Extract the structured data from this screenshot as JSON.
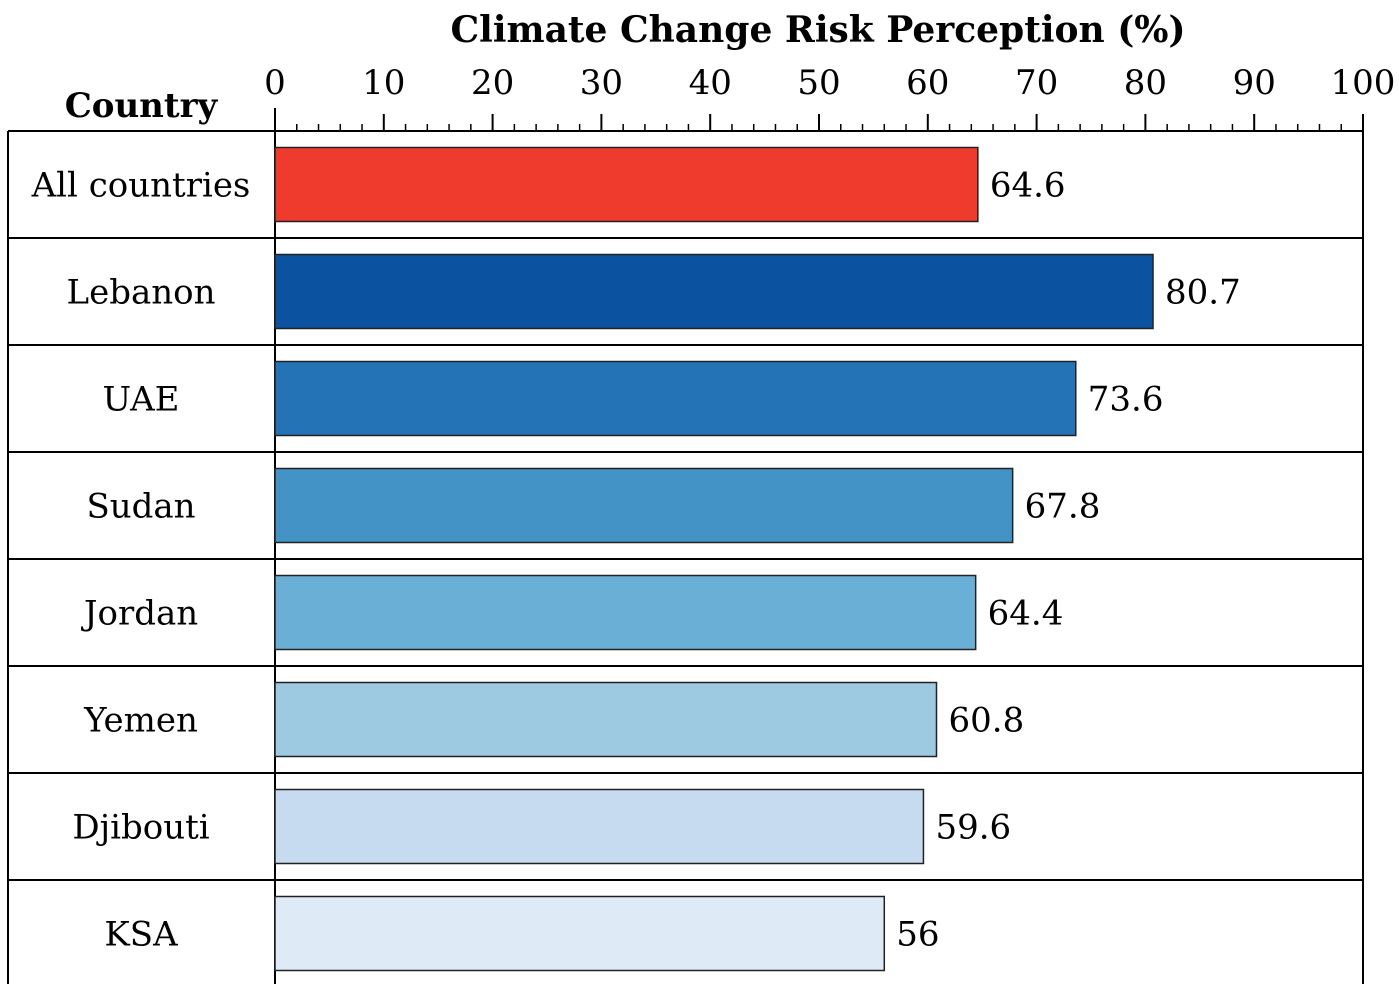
{
  "chart_data": {
    "type": "bar",
    "orientation": "horizontal",
    "title": "Climate Change Risk Perception (%)",
    "category_header": "Country",
    "xlim": [
      0,
      100
    ],
    "x_ticks": [
      "0",
      "10",
      "20",
      "30",
      "40",
      "50",
      "60",
      "70",
      "80",
      "90",
      "100"
    ],
    "grid": false,
    "categories": [
      "All countries",
      "Lebanon",
      "UAE",
      "Sudan",
      "Jordan",
      "Yemen",
      "Djibouti",
      "KSA"
    ],
    "values": [
      64.6,
      80.7,
      73.6,
      67.8,
      64.4,
      60.8,
      59.6,
      56
    ],
    "value_labels": [
      "64.6",
      "80.7",
      "73.6",
      "67.8",
      "64.4",
      "60.8",
      "59.6",
      "56"
    ],
    "colors": [
      "#ee3b2e",
      "#0b53a0",
      "#2373b6",
      "#4393c6",
      "#6aafd6",
      "#9ecae1",
      "#c6dbef",
      "#deebf7"
    ]
  }
}
